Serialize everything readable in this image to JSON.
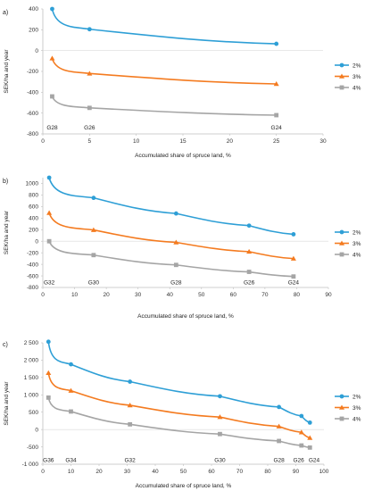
{
  "chart_data": [
    {
      "type": "line",
      "panel_label": "a)",
      "xlabel": "Accumulated share of spruce land, %",
      "ylabel": "SEK/ha and year",
      "xlim": [
        0,
        30
      ],
      "ylim": [
        -800,
        400
      ],
      "xticks": [
        0,
        5,
        10,
        15,
        20,
        25,
        30
      ],
      "yticks": [
        -800,
        -600,
        -400,
        -200,
        0,
        200,
        400
      ],
      "ytick_labels": [
        "-800",
        "-600",
        "-400",
        "-200",
        "0",
        "200",
        "400"
      ],
      "grid": false,
      "legend_position": "right",
      "series": [
        {
          "name": "2%",
          "color": "#2e9fd6",
          "marker": "circle",
          "points": [
            [
              1,
              400
            ],
            [
              5,
              205
            ],
            [
              25,
              65
            ]
          ],
          "shape": [
            0,
            0.42,
            1
          ]
        },
        {
          "name": "3%",
          "color": "#f47b20",
          "marker": "triangle",
          "points": [
            [
              1,
              -75
            ],
            [
              5,
              -220
            ],
            [
              25,
              -320
            ]
          ],
          "shape": [
            0,
            0.45,
            1
          ]
        },
        {
          "name": "4%",
          "color": "#a5a5a5",
          "marker": "square",
          "points": [
            [
              1,
              -440
            ],
            [
              5,
              -550
            ],
            [
              25,
              -620
            ]
          ],
          "shape": [
            0,
            0.45,
            1
          ]
        }
      ],
      "annotations": [
        {
          "text": "G28",
          "x": 1,
          "y": -735
        },
        {
          "text": "G26",
          "x": 5,
          "y": -735
        },
        {
          "text": "G24",
          "x": 25,
          "y": -735
        }
      ]
    },
    {
      "type": "line",
      "panel_label": "b)",
      "xlabel": "Accumulated share of spruce land, %",
      "ylabel": "SEK/ha and year",
      "xlim": [
        0,
        90
      ],
      "ylim": [
        -800,
        1100
      ],
      "xticks": [
        0,
        10,
        20,
        30,
        40,
        50,
        60,
        70,
        80,
        90
      ],
      "yticks": [
        -800,
        -600,
        -400,
        -200,
        0,
        200,
        400,
        600,
        800,
        1000
      ],
      "ytick_labels": [
        "-800",
        "-600",
        "-400",
        "-200",
        "0",
        "200",
        "400",
        "600",
        "800",
        "1000"
      ],
      "grid": false,
      "legend_position": "right",
      "series": [
        {
          "name": "2%",
          "color": "#2e9fd6",
          "marker": "circle",
          "points": [
            [
              2,
              1100
            ],
            [
              16,
              750
            ],
            [
              42,
              480
            ],
            [
              65,
              270
            ],
            [
              79,
              120
            ]
          ],
          "shape": [
            0,
            0.45,
            0.5,
            0.5,
            1
          ]
        },
        {
          "name": "3%",
          "color": "#f47b20",
          "marker": "triangle",
          "points": [
            [
              2,
              490
            ],
            [
              16,
              195
            ],
            [
              42,
              -20
            ],
            [
              65,
              -180
            ],
            [
              79,
              -300
            ]
          ],
          "shape": [
            0,
            0.45,
            0.5,
            0.5,
            1
          ]
        },
        {
          "name": "4%",
          "color": "#a5a5a5",
          "marker": "square",
          "points": [
            [
              2,
              0
            ],
            [
              16,
              -240
            ],
            [
              42,
              -410
            ],
            [
              65,
              -530
            ],
            [
              79,
              -610
            ]
          ],
          "shape": [
            0,
            0.45,
            0.5,
            0.5,
            1
          ]
        }
      ],
      "annotations": [
        {
          "text": "G32",
          "x": 2,
          "y": -710
        },
        {
          "text": "G30",
          "x": 16,
          "y": -710
        },
        {
          "text": "G28",
          "x": 42,
          "y": -710
        },
        {
          "text": "G26",
          "x": 65,
          "y": -710
        },
        {
          "text": "G24",
          "x": 79,
          "y": -710
        }
      ]
    },
    {
      "type": "line",
      "panel_label": "c)",
      "xlabel": "Accumulated share of spruce land, %",
      "ylabel": "SEK/ha and year",
      "xlim": [
        0,
        100
      ],
      "ylim": [
        -1000,
        2500
      ],
      "xticks": [
        0,
        10,
        20,
        30,
        40,
        50,
        60,
        70,
        80,
        90,
        100
      ],
      "yticks": [
        -1000,
        -500,
        0,
        500,
        1000,
        1500,
        2000,
        2500
      ],
      "ytick_labels": [
        "-1 000",
        "-500",
        "0",
        "500",
        "1 000",
        "1 500",
        "2 000",
        "2 500"
      ],
      "grid": false,
      "legend_position": "right",
      "series": [
        {
          "name": "2%",
          "color": "#2e9fd6",
          "marker": "circle",
          "points": [
            [
              2,
              2530
            ],
            [
              10,
              1880
            ],
            [
              31,
              1380
            ],
            [
              63,
              960
            ],
            [
              84,
              650
            ],
            [
              92,
              390
            ],
            [
              95,
              200
            ]
          ],
          "shape": [
            0,
            0.45,
            0.5,
            0.5,
            0.5,
            0.5,
            1
          ]
        },
        {
          "name": "3%",
          "color": "#f47b20",
          "marker": "triangle",
          "points": [
            [
              2,
              1630
            ],
            [
              10,
              1120
            ],
            [
              31,
              700
            ],
            [
              63,
              360
            ],
            [
              84,
              90
            ],
            [
              92,
              -80
            ],
            [
              95,
              -240
            ]
          ],
          "shape": [
            0,
            0.45,
            0.5,
            0.5,
            0.5,
            0.5,
            1
          ]
        },
        {
          "name": "4%",
          "color": "#a5a5a5",
          "marker": "square",
          "points": [
            [
              2,
              920
            ],
            [
              10,
              520
            ],
            [
              31,
              150
            ],
            [
              63,
              -130
            ],
            [
              84,
              -330
            ],
            [
              92,
              -460
            ],
            [
              95,
              -520
            ]
          ],
          "shape": [
            0,
            0.45,
            0.5,
            0.5,
            0.5,
            0.5,
            1
          ]
        }
      ],
      "annotations": [
        {
          "text": "G36",
          "x": 2,
          "y": -870
        },
        {
          "text": "G34",
          "x": 10,
          "y": -870
        },
        {
          "text": "G32",
          "x": 31,
          "y": -870
        },
        {
          "text": "G30",
          "x": 63,
          "y": -870
        },
        {
          "text": "G28",
          "x": 84,
          "y": -870
        },
        {
          "text": "G26",
          "x": 91,
          "y": -870
        },
        {
          "text": "G24",
          "x": 96.5,
          "y": -870
        }
      ]
    }
  ]
}
